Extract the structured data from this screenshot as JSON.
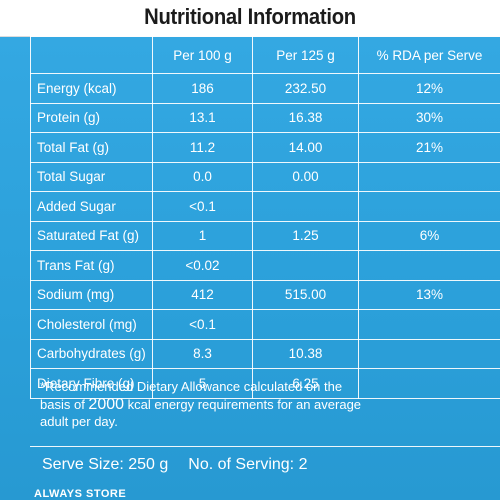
{
  "title": "Nutritional Information",
  "columns": [
    "Per 100 g",
    "Per 125 g",
    "% RDA per Serve"
  ],
  "rows": [
    {
      "label": "Energy (kcal)",
      "per100": "186",
      "per125": "232.50",
      "rda": "12%"
    },
    {
      "label": "Protein (g)",
      "per100": "13.1",
      "per125": "16.38",
      "rda": "30%"
    },
    {
      "label": "Total Fat (g)",
      "per100": "11.2",
      "per125": "14.00",
      "rda": "21%"
    },
    {
      "label": "Total Sugar",
      "per100": "0.0",
      "per125": "0.00",
      "rda": ""
    },
    {
      "label": "Added Sugar",
      "per100": "<0.1",
      "per125": "",
      "rda": ""
    },
    {
      "label": "Saturated Fat (g)",
      "per100": "1",
      "per125": "1.25",
      "rda": "6%"
    },
    {
      "label": "Trans Fat (g)",
      "per100": "<0.02",
      "per125": "",
      "rda": ""
    },
    {
      "label": "Sodium (mg)",
      "per100": "412",
      "per125": "515.00",
      "rda": "13%"
    },
    {
      "label": "Cholesterol (mg)",
      "per100": "<0.1",
      "per125": "",
      "rda": ""
    },
    {
      "label": "Carbohydrates (g)",
      "per100": "8.3",
      "per125": "10.38",
      "rda": ""
    },
    {
      "label": "Dietary Fibre (g)",
      "per100": "5",
      "per125": "6.25",
      "rda": ""
    }
  ],
  "footnote": {
    "line1": "*Recommended Dietary Allowance calculated on the",
    "line2_pre": "basis of ",
    "line2_big": "2000",
    "line2_post": " kcal energy requirements for an average",
    "line3": "adult per day."
  },
  "serve_size": "Serve Size: 250 g",
  "servings": "No. of Serving: 2",
  "bottom_text": "ALWAYS STORE"
}
